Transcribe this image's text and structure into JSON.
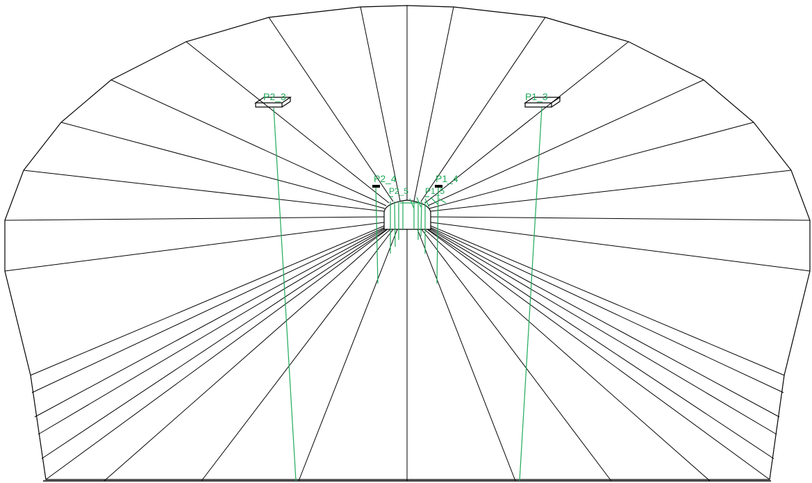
{
  "colors": {
    "background": "#ffffff",
    "mesh": "#000000",
    "annotation": "#1faa59"
  },
  "labels": {
    "p2_3": "P2_3",
    "p1_3": "P1_3",
    "p2_4": "P2_4",
    "p1_4": "P1_4",
    "inner_left": "P2_5",
    "inner_right": "P1_5"
  }
}
